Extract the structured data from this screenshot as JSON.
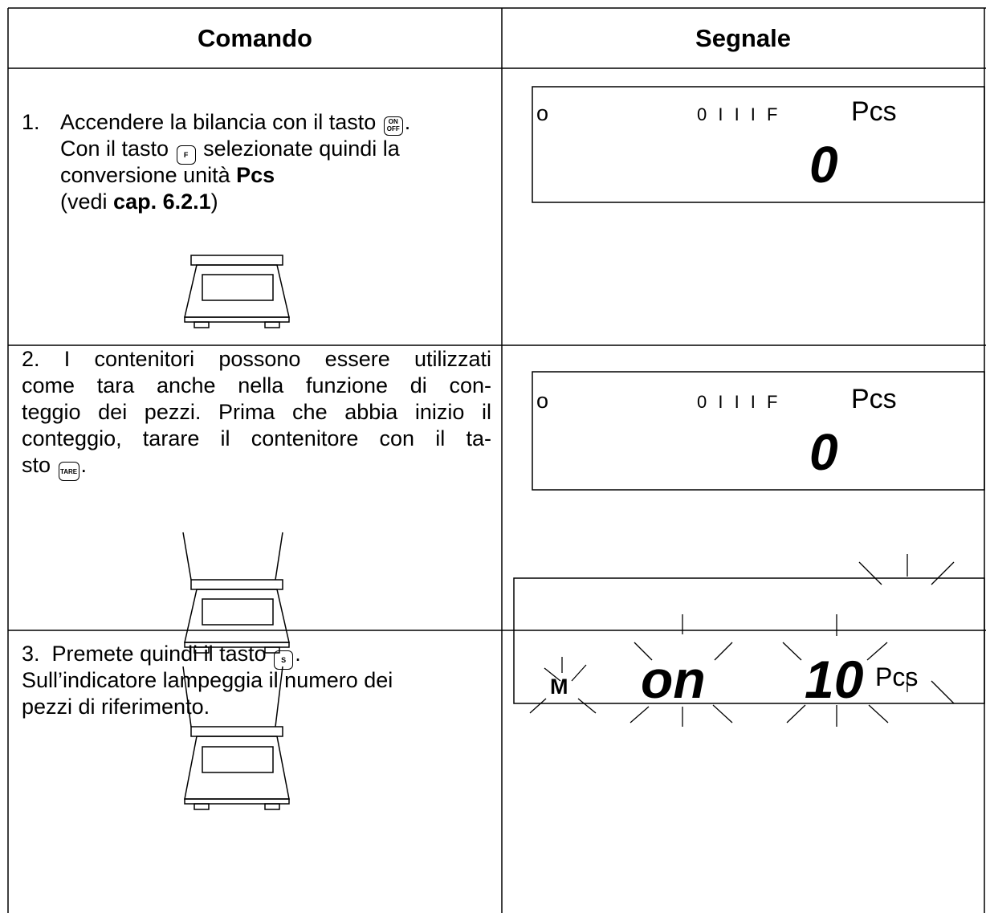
{
  "header": {
    "col1": "Comando",
    "col2": "Segnale"
  },
  "rows": [
    {
      "command": {
        "lines": [
          [
            "1.",
            "Accendere la bilancia con il tasto",
            "."
          ],
          [
            "Con il tasto",
            "selezionate quindi la"
          ],
          [
            "conversione unità",
            "Pcs"
          ],
          [
            "(vedi",
            "cap. 6.2.1",
            ")"
          ]
        ],
        "keys": [
          [
            "ON",
            "OFF"
          ],
          "F"
        ]
      },
      "display": {
        "indicator": "o",
        "status": "0 I I I F",
        "unit": "Pcs",
        "value": "0"
      }
    },
    {
      "command": {
        "lines": [
          "2.  I contenitori possono essere utilizzati",
          "come tara anche nella funzione di con-",
          "teggio dei pezzi. Prima che abbia inizio il",
          "conteggio, tarare il contenitore con il ta-",
          [
            "sto",
            "."
          ]
        ],
        "keys": [
          "TARE"
        ]
      },
      "display": {
        "indicator": "o",
        "status": "0 I I I F",
        "unit": "Pcs",
        "value": "0"
      }
    },
    {
      "command": {
        "lines": [
          [
            "3.  Premete quindi il tasto",
            "."
          ],
          "Sull’indicatore lampeggia il numero dei",
          "pezzi di riferimento."
        ],
        "keys": [
          "S"
        ]
      },
      "display": {
        "indicator": "M",
        "mode": "on",
        "value": "10",
        "unit": "Pcs"
      }
    }
  ]
}
